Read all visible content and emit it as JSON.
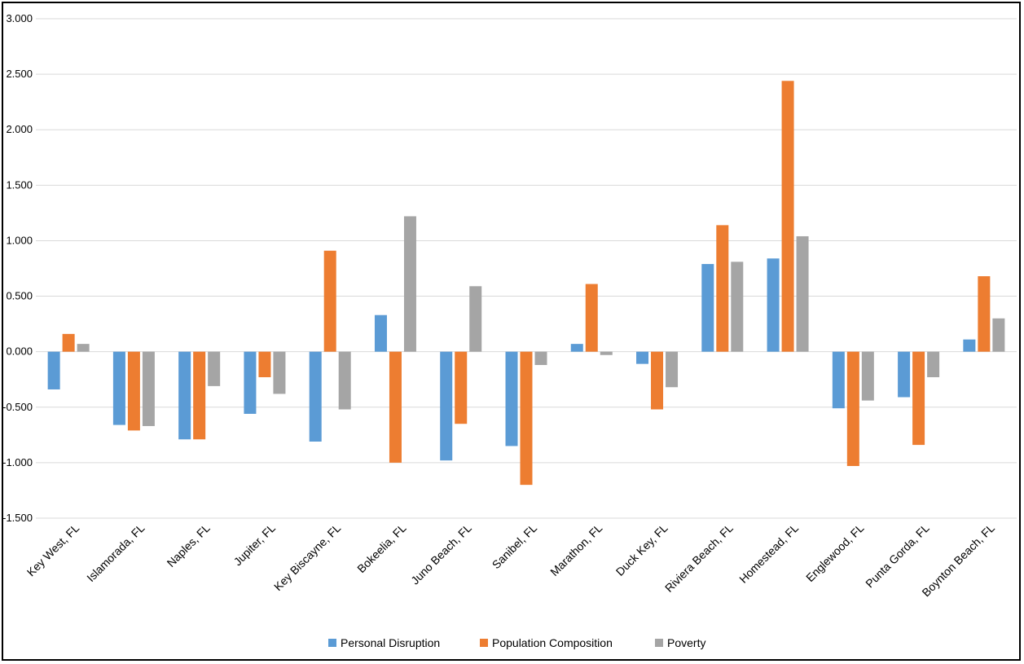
{
  "chart_data": {
    "type": "bar",
    "title": "",
    "xlabel": "",
    "ylabel": "",
    "ylim": [
      -1.5,
      3.0
    ],
    "yticks": [
      "3.000",
      "2.500",
      "2.000",
      "1.500",
      "1.000",
      "0.500",
      "0.000",
      "-0.500",
      "-1.000",
      "-1.500"
    ],
    "grid": true,
    "legend_position": "bottom",
    "categories": [
      "Key West, FL",
      "Islamorada, FL",
      "Naples, FL",
      "Jupiter, FL",
      "Key Biscayne, FL",
      "Bokeelia, FL",
      "Juno Beach, FL",
      "Sanibel, FL",
      "Marathon, FL",
      "Duck Key, FL",
      "Riviera Beach, FL",
      "Homestead, FL",
      "Englewood, FL",
      "Punta Gorda, FL",
      "Boynton Beach, FL"
    ],
    "series": [
      {
        "name": "Personal Disruption",
        "color": "#5B9BD5",
        "values": [
          -0.34,
          -0.66,
          -0.79,
          -0.56,
          -0.81,
          0.33,
          -0.98,
          -0.85,
          0.07,
          -0.11,
          0.79,
          0.84,
          -0.51,
          -0.41,
          0.11
        ]
      },
      {
        "name": "Population Composition",
        "color": "#ED7D31",
        "values": [
          0.16,
          -0.71,
          -0.79,
          -0.23,
          0.91,
          -1.0,
          -0.65,
          -1.2,
          0.61,
          -0.52,
          1.14,
          2.44,
          -1.03,
          -0.84,
          0.68
        ]
      },
      {
        "name": "Poverty",
        "color": "#A5A5A5",
        "values": [
          0.07,
          -0.67,
          -0.31,
          -0.38,
          -0.52,
          1.22,
          0.59,
          -0.12,
          -0.03,
          -0.32,
          0.81,
          1.04,
          -0.44,
          -0.23,
          0.3
        ]
      }
    ]
  }
}
